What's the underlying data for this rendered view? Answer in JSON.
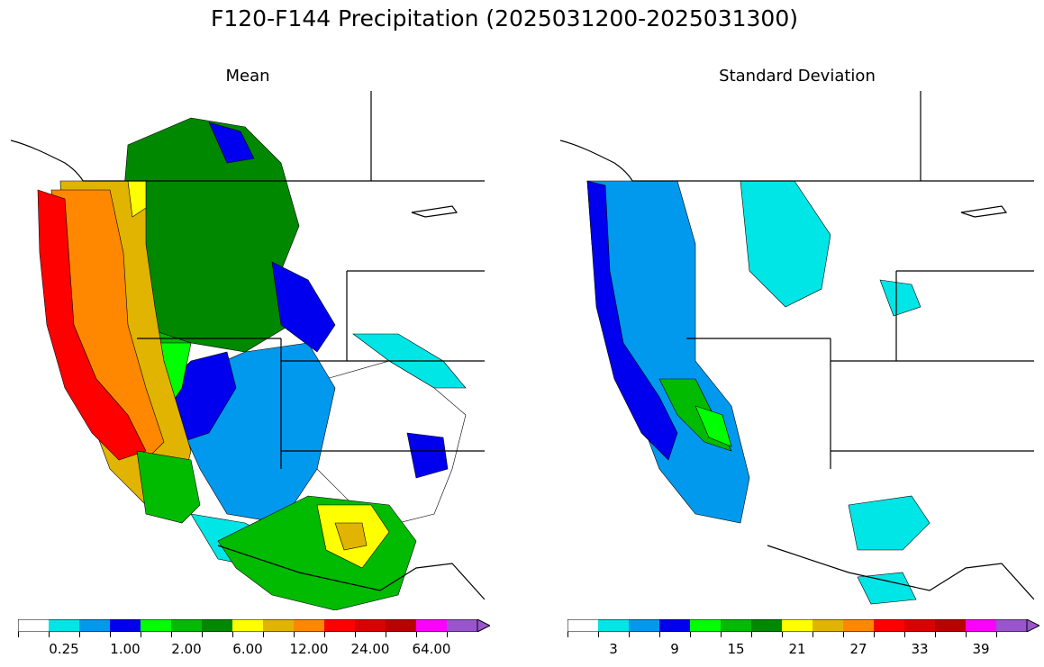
{
  "figure": {
    "title": "F120-F144 Precipitation (2025031200-2025031300)"
  },
  "chart_data": [
    {
      "type": "heatmap",
      "title": "Mean",
      "colorbar": {
        "colors": [
          "#ffffff",
          "#00e5e5",
          "#0099ee",
          "#0000ee",
          "#00ff00",
          "#00bb00",
          "#008800",
          "#ffff00",
          "#e0b400",
          "#ff8800",
          "#ff0000",
          "#dd0000",
          "#bb0000",
          "#ff00ff",
          "#9955cc"
        ],
        "tick_labels": [
          "0.25",
          "1.00",
          "2.00",
          "6.00",
          "12.00",
          "24.00",
          "64.00"
        ],
        "label_bins": [
          1,
          3,
          5,
          7,
          9,
          11,
          13
        ],
        "extend": "max"
      },
      "region_colors": {
        "coast_wa_or": "#ff0000",
        "coast_or_mid": "#ff8800",
        "inland_ca_foothills": "#e0b400",
        "cascade_yellow": "#ffff00",
        "interior_nw": "#008800",
        "interior_nw_light": "#00bb00",
        "great_basin_blue": "#0099ee",
        "deep_blue": "#0000ee",
        "cyan_zones": "#00e5e5",
        "dry_zone": "#ffffff",
        "lime_zones": "#00ff00"
      }
    },
    {
      "type": "heatmap",
      "title": "Standard Deviation",
      "colorbar": {
        "colors": [
          "#ffffff",
          "#00e5e5",
          "#0099ee",
          "#0000ee",
          "#00ff00",
          "#00bb00",
          "#008800",
          "#ffff00",
          "#e0b400",
          "#ff8800",
          "#ff0000",
          "#dd0000",
          "#bb0000",
          "#ff00ff",
          "#9955cc"
        ],
        "tick_labels": [
          "3",
          "9",
          "15",
          "21",
          "27",
          "33",
          "39"
        ],
        "label_bins": [
          1,
          3,
          5,
          7,
          9,
          11,
          13
        ],
        "extend": "max"
      },
      "region_colors": {
        "coast_strip": "#0099ee",
        "coast_deep": "#0000ee",
        "sierra_green": "#00bb00",
        "sierra_lime": "#00ff00",
        "cyan_zones": "#00e5e5",
        "background": "#ffffff"
      }
    }
  ]
}
